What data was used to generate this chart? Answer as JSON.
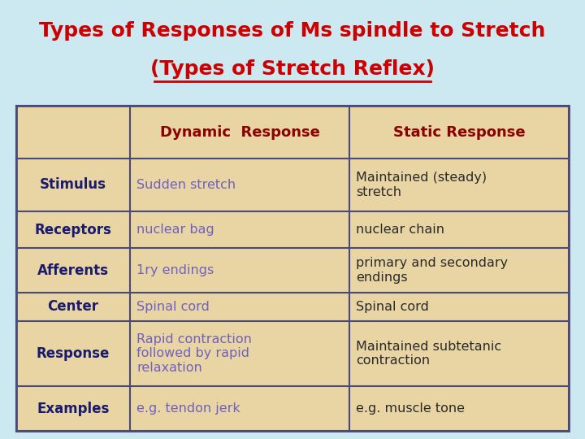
{
  "title_line1": "Types of Responses of Ms spindle to Stretch",
  "title_line2": "(Types of Stretch Reflex)",
  "title_color": "#cc0000",
  "title_bg_color": "#cce8f0",
  "table_bg_color": "#e8d5a3",
  "table_border_color": "#4a4a7a",
  "header_row": [
    "",
    "Dynamic  Response",
    "Static Response"
  ],
  "header_color": "#8b0000",
  "rows": [
    [
      "Stimulus",
      "Sudden stretch",
      "Maintained (steady)\nstretch"
    ],
    [
      "Receptors",
      "nuclear bag",
      "nuclear chain"
    ],
    [
      "Afferents",
      "1ry endings",
      "primary and secondary\nendings"
    ],
    [
      "Center",
      "Spinal cord",
      "Spinal cord"
    ],
    [
      "Response",
      "Rapid contraction\nfollowed by rapid\nrelaxation",
      "Maintained subtetanic\ncontraction"
    ],
    [
      "Examples",
      "e.g. tendon jerk",
      "e.g. muscle tone"
    ]
  ],
  "col1_color": "#1a1a6e",
  "col2_color": "#7060c0",
  "col3_color": "#2a2a2a",
  "figwidth": 7.2,
  "figheight": 5.4,
  "dpi": 100
}
